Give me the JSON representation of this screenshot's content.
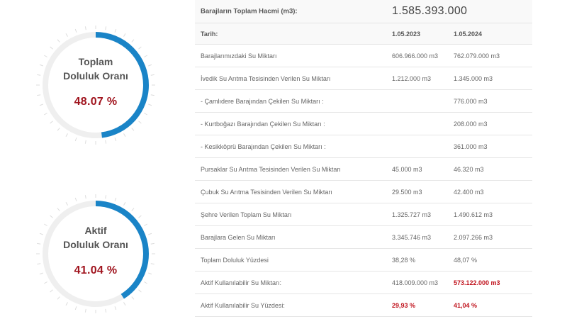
{
  "gauges": {
    "total": {
      "title_line1": "Toplam",
      "title_line2": "Doluluk Oranı",
      "value_label": "48.07 %",
      "fraction": 0.4807,
      "arc_color": "#1a84c7",
      "track_color": "#efefef"
    },
    "active": {
      "title_line1": "Aktif",
      "title_line2": "Doluluk Oranı",
      "value_label": "41.04 %",
      "fraction": 0.4104,
      "arc_color": "#1a84c7",
      "track_color": "#efefef"
    }
  },
  "table": {
    "header": {
      "label": "Barajların Toplam Hacmi (m3):",
      "value": "1.585.393.000"
    },
    "dates": {
      "label": "Tarih:",
      "col1": "1.05.2023",
      "col2": "1.05.2024"
    },
    "rows": [
      {
        "label": "Barajlarımızdaki Su Miktarı",
        "v2023": "606.966.000 m3",
        "v2024": "762.079.000 m3",
        "highlight2023": false,
        "highlight2024": false
      },
      {
        "label": "İvedik Su Arıtma Tesisinden Verilen Su Miktarı",
        "v2023": "1.212.000 m3",
        "v2024": "1.345.000 m3",
        "highlight2023": false,
        "highlight2024": false
      },
      {
        "label": "- Çamlıdere Barajından Çekilen Su Miktarı :",
        "v2023": "",
        "v2024": "776.000 m3",
        "highlight2023": false,
        "highlight2024": false
      },
      {
        "label": "- Kurtboğazı Barajından Çekilen Su Miktarı :",
        "v2023": "",
        "v2024": "208.000 m3",
        "highlight2023": false,
        "highlight2024": false
      },
      {
        "label": "- Kesikköprü Barajından Çekilen Su Miktarı :",
        "v2023": "",
        "v2024": "361.000 m3",
        "highlight2023": false,
        "highlight2024": false
      },
      {
        "label": "Pursaklar Su Arıtma Tesisinden Verilen Su Miktarı",
        "v2023": "45.000 m3",
        "v2024": "46.320 m3",
        "highlight2023": false,
        "highlight2024": false
      },
      {
        "label": "Çubuk Su Arıtma Tesisinden Verilen Su Miktarı",
        "v2023": "29.500 m3",
        "v2024": "42.400 m3",
        "highlight2023": false,
        "highlight2024": false
      },
      {
        "label": "Şehre Verilen Toplam Su Miktarı",
        "v2023": "1.325.727 m3",
        "v2024": "1.490.612 m3",
        "highlight2023": false,
        "highlight2024": false
      },
      {
        "label": "Barajlara Gelen Su Miktarı",
        "v2023": "3.345.746 m3",
        "v2024": "2.097.266 m3",
        "highlight2023": false,
        "highlight2024": false
      },
      {
        "label": "Toplam Doluluk Yüzdesi",
        "v2023": "38,28 %",
        "v2024": "48,07 %",
        "highlight2023": false,
        "highlight2024": false
      },
      {
        "label": "Aktif Kullanılabilir Su Miktarı:",
        "v2023": "418.009.000 m3",
        "v2024": "573.122.000 m3",
        "highlight2023": false,
        "highlight2024": true
      },
      {
        "label": "Aktif Kullanılabilir Su Yüzdesi:",
        "v2023": "29,93 %",
        "v2024": "41,04 %",
        "highlight2023": true,
        "highlight2024": true
      }
    ]
  }
}
